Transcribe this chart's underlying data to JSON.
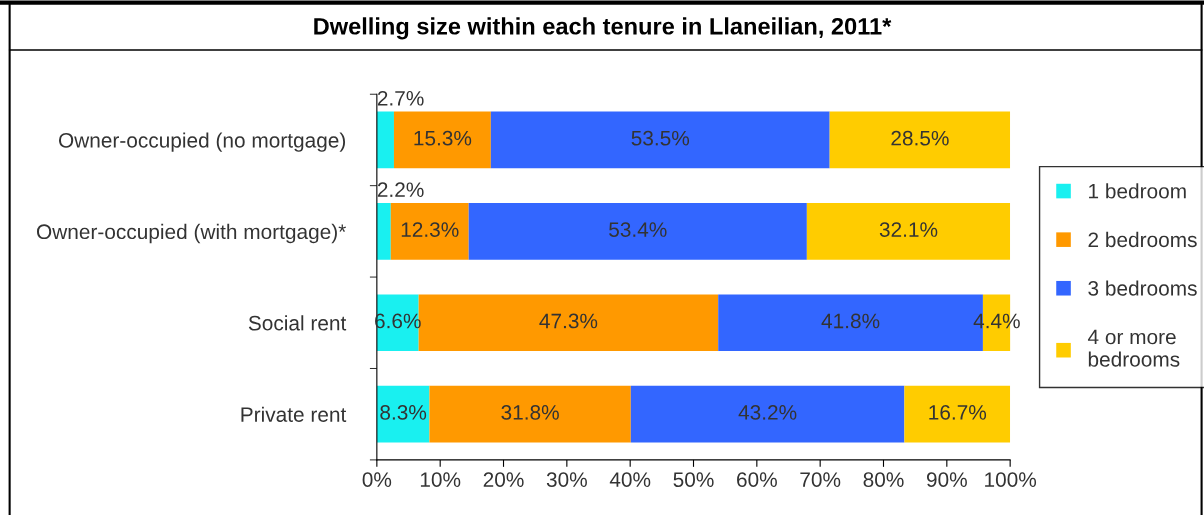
{
  "chart_data": {
    "type": "bar",
    "orientation": "horizontal",
    "stacked": true,
    "title": "Dwelling size within each tenure in Llaneilian, 2011*",
    "categories": [
      "Owner-occupied (no mortgage)",
      "Owner-occupied (with mortgage)*",
      "Social rent",
      "Private rent"
    ],
    "series": [
      {
        "name": "1 bedroom",
        "color": "#19f0f0",
        "values": [
          2.7,
          2.2,
          6.6,
          8.3
        ],
        "value_labels": [
          "2.7%",
          "2.2%",
          "6.6%",
          "8.3%"
        ]
      },
      {
        "name": "2 bedrooms",
        "color": "#ff9900",
        "values": [
          15.3,
          12.3,
          47.3,
          31.8
        ],
        "value_labels": [
          "15.3%",
          "12.3%",
          "47.3%",
          "31.8%"
        ]
      },
      {
        "name": "3 bedrooms",
        "color": "#3366ff",
        "values": [
          53.5,
          53.4,
          41.8,
          43.2
        ],
        "value_labels": [
          "53.5%",
          "53.4%",
          "41.8%",
          "43.2%"
        ]
      },
      {
        "name": "4 or more\nbedrooms",
        "color": "#ffcc00",
        "values": [
          28.5,
          32.1,
          4.4,
          16.7
        ],
        "value_labels": [
          "28.5%",
          "32.1%",
          "4.4%",
          "16.7%"
        ]
      }
    ],
    "xlim": [
      0,
      100
    ],
    "xticks": [
      {
        "value": 0,
        "label": "0%"
      },
      {
        "value": 10,
        "label": "10%"
      },
      {
        "value": 20,
        "label": "20%"
      },
      {
        "value": 30,
        "label": "30%"
      },
      {
        "value": 40,
        "label": "40%"
      },
      {
        "value": 50,
        "label": "50%"
      },
      {
        "value": 60,
        "label": "60%"
      },
      {
        "value": 70,
        "label": "70%"
      },
      {
        "value": 80,
        "label": "80%"
      },
      {
        "value": 90,
        "label": "90%"
      },
      {
        "value": 100,
        "label": "100%"
      }
    ],
    "grid": false,
    "legend": "right"
  }
}
